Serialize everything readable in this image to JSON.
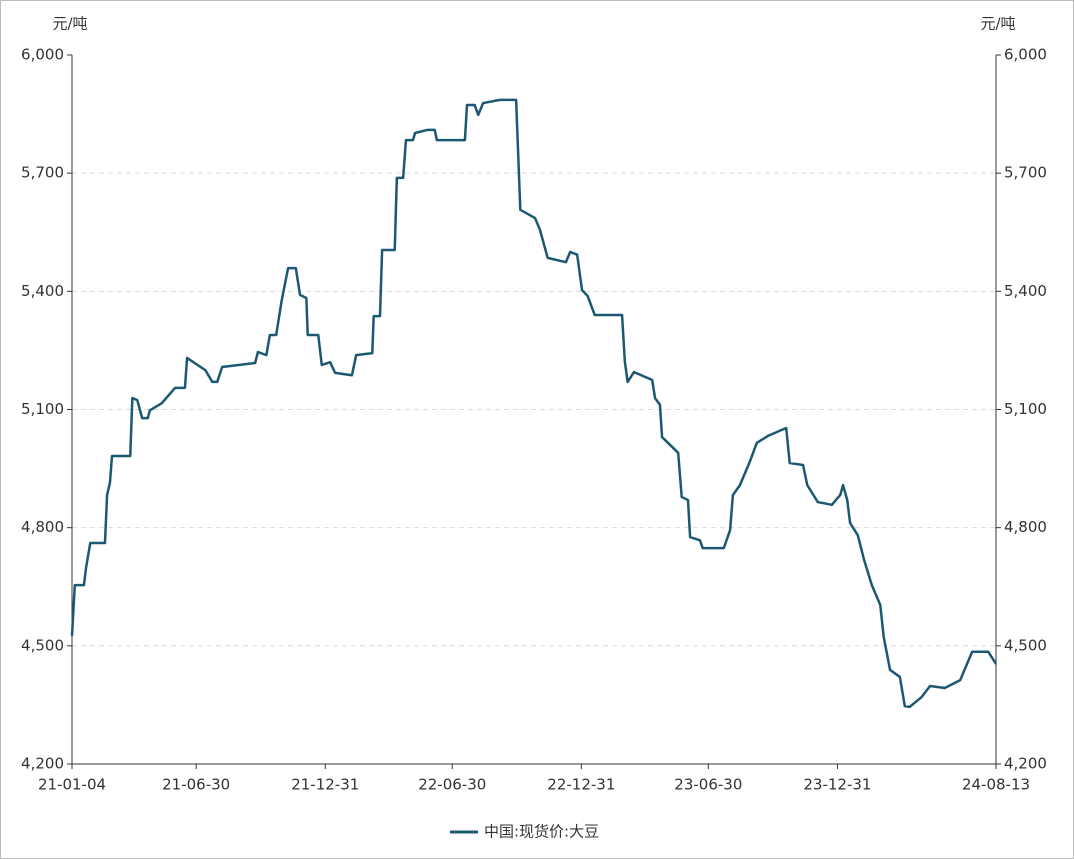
{
  "chart_data": {
    "type": "line",
    "y_unit": "元/吨",
    "y2_unit": "元/吨",
    "x": [
      "21-01-04",
      "21-01-08",
      "21-01-21",
      "21-01-24",
      "21-01-30",
      "21-02-20",
      "21-02-23",
      "21-02-27",
      "21-03-02",
      "21-03-28",
      "21-03-31",
      "21-04-07",
      "21-04-14",
      "21-04-22",
      "21-04-25",
      "21-05-12",
      "21-05-31",
      "21-06-14",
      "21-06-17",
      "21-07-13",
      "21-07-23",
      "21-07-30",
      "21-08-06",
      "21-09-22",
      "21-09-26",
      "21-10-08",
      "21-10-13",
      "21-10-22",
      "21-10-30",
      "21-11-08",
      "21-11-19",
      "21-11-25",
      "21-12-04",
      "21-12-06",
      "21-12-21",
      "21-12-26",
      "22-01-07",
      "22-01-14",
      "22-02-07",
      "22-02-13",
      "22-03-08",
      "22-03-10",
      "22-03-19",
      "22-03-22",
      "22-04-09",
      "22-04-12",
      "22-04-21",
      "22-04-25",
      "22-05-05",
      "22-05-08",
      "22-05-26",
      "22-06-05",
      "22-06-08",
      "22-07-18",
      "22-07-21",
      "22-08-01",
      "22-08-06",
      "22-08-13",
      "22-09-06",
      "22-09-29",
      "22-10-05",
      "22-10-26",
      "22-11-02",
      "22-11-13",
      "22-12-09",
      "22-12-15",
      "22-12-25",
      "23-01-01",
      "23-01-09",
      "23-01-19",
      "23-02-27",
      "23-03-03",
      "23-03-07",
      "23-03-16",
      "23-04-11",
      "23-04-15",
      "23-04-22",
      "23-04-25",
      "23-05-18",
      "23-05-23",
      "23-06-01",
      "23-06-04",
      "23-06-18",
      "23-06-22",
      "23-07-22",
      "23-07-31",
      "23-08-04",
      "23-08-14",
      "23-08-28",
      "23-09-07",
      "23-09-23",
      "23-10-19",
      "23-10-24",
      "23-11-12",
      "23-11-18",
      "23-12-03",
      "23-12-23",
      "24-01-04",
      "24-01-08",
      "24-01-14",
      "24-01-18",
      "24-01-29",
      "24-02-07",
      "24-02-18",
      "24-03-01",
      "24-03-06",
      "24-03-15",
      "24-03-29",
      "24-04-05",
      "24-04-12",
      "24-04-29",
      "24-05-11",
      "24-06-01",
      "24-06-23",
      "24-07-10",
      "24-08-02",
      "24-08-13"
    ],
    "series": [
      {
        "name": "中国:现货价:大豆",
        "color": "#1d5873",
        "values": [
          4525,
          4654,
          4654,
          4698,
          4761,
          4761,
          4883,
          4913,
          4982,
          4982,
          5129,
          5124,
          5078,
          5078,
          5098,
          5116,
          5155,
          5155,
          5231,
          5200,
          5170,
          5170,
          5208,
          5218,
          5246,
          5238,
          5289,
          5289,
          5378,
          5459,
          5459,
          5391,
          5383,
          5289,
          5289,
          5213,
          5220,
          5193,
          5187,
          5238,
          5243,
          5337,
          5337,
          5505,
          5505,
          5688,
          5688,
          5784,
          5784,
          5802,
          5810,
          5810,
          5784,
          5784,
          5873,
          5873,
          5848,
          5878,
          5886,
          5886,
          5607,
          5586,
          5556,
          5485,
          5474,
          5500,
          5493,
          5403,
          5388,
          5340,
          5340,
          5221,
          5170,
          5195,
          5175,
          5129,
          5112,
          5030,
          4990,
          4878,
          4870,
          4776,
          4768,
          4748,
          4748,
          4794,
          4883,
          4908,
          4967,
          5015,
          5033,
          5053,
          4964,
          4959,
          4908,
          4865,
          4858,
          4883,
          4908,
          4870,
          4812,
          4781,
          4718,
          4654,
          4604,
          4522,
          4439,
          4421,
          4347,
          4345,
          4370,
          4398,
          4393,
          4413,
          4485,
          4485,
          4454
        ]
      }
    ],
    "xlim": [
      "21-01-04",
      "24-08-13"
    ],
    "xticks": [
      "21-01-04",
      "21-06-30",
      "21-12-31",
      "22-06-30",
      "22-12-31",
      "23-06-30",
      "23-12-31",
      "24-08-13"
    ],
    "ylim": [
      4200,
      6000
    ],
    "yticks": [
      {
        "value": 4200,
        "label": "4,200"
      },
      {
        "value": 4500,
        "label": "4,500"
      },
      {
        "value": 4800,
        "label": "4,800"
      },
      {
        "value": 5100,
        "label": "5,100"
      },
      {
        "value": 5400,
        "label": "5,400"
      },
      {
        "value": 5700,
        "label": "5,700"
      },
      {
        "value": 6000,
        "label": "6,000"
      }
    ],
    "y2lim": [
      4200,
      6000
    ],
    "y2ticks": [
      {
        "value": 4200,
        "label": "4,200"
      },
      {
        "value": 4500,
        "label": "4,500"
      },
      {
        "value": 4800,
        "label": "4,800"
      },
      {
        "value": 5100,
        "label": "5,100"
      },
      {
        "value": 5400,
        "label": "5,400"
      },
      {
        "value": 5700,
        "label": "5,700"
      },
      {
        "value": 6000,
        "label": "6,000"
      }
    ],
    "grid": true,
    "legend": "bottom"
  }
}
